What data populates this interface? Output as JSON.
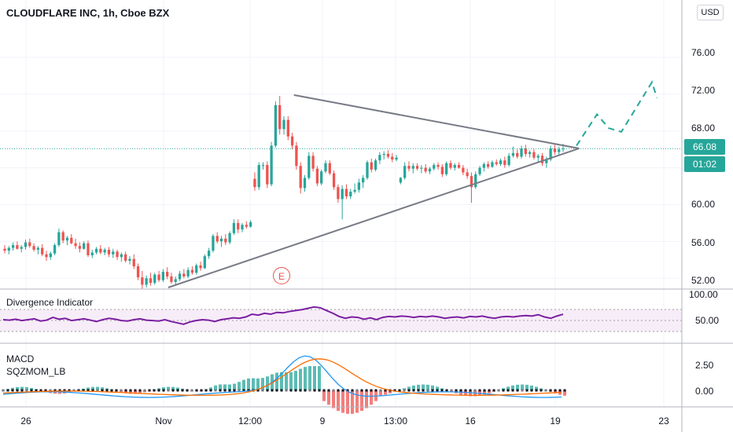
{
  "header": {
    "title": "CLOUDFLARE INC, 1h, Cboe BZX",
    "currency": "USD"
  },
  "price_axis": [
    "76.00",
    "72.00",
    "68.00",
    "64.00",
    "60.00",
    "56.00",
    "52.00"
  ],
  "last_price": {
    "value": "66.08",
    "countdown": "01:02"
  },
  "x_axis": [
    "26",
    "Nov",
    "12:00",
    "9",
    "13:00",
    "16",
    "19",
    "23"
  ],
  "earnings_marker": "E",
  "indicators": {
    "divergence": {
      "label": "Divergence Indicator",
      "ticks": [
        "100.00",
        "50.00"
      ]
    },
    "macd": {
      "label1": "MACD",
      "label2": "SQZMOM_LB",
      "ticks": [
        "2.50",
        "0.00"
      ]
    }
  },
  "colors": {
    "up": "#26a69a",
    "down": "#ef5350",
    "trend": "#787b86",
    "projection": "#26a69a",
    "divergence": "#7b1fa2",
    "macd": "#2196f3",
    "signal": "#ff6d00"
  },
  "chart_data": {
    "type": "candlestick",
    "title": "CLOUDFLARE INC, 1h, Cboe BZX",
    "ylim": [
      51,
      80
    ],
    "candles": [
      [
        55.2,
        55.6,
        54.7,
        55.0
      ],
      [
        55.0,
        55.5,
        54.6,
        55.3
      ],
      [
        55.3,
        55.9,
        55.0,
        55.6
      ],
      [
        55.6,
        56.0,
        55.1,
        55.2
      ],
      [
        55.2,
        55.6,
        54.8,
        55.4
      ],
      [
        55.4,
        56.2,
        55.1,
        55.9
      ],
      [
        55.9,
        56.3,
        55.3,
        55.5
      ],
      [
        55.5,
        55.8,
        54.9,
        55.1
      ],
      [
        55.1,
        55.5,
        54.6,
        55.3
      ],
      [
        55.3,
        55.7,
        54.4,
        54.6
      ],
      [
        54.6,
        55.0,
        53.9,
        54.3
      ],
      [
        54.3,
        54.9,
        54.0,
        54.7
      ],
      [
        54.7,
        55.8,
        54.5,
        55.6
      ],
      [
        55.6,
        57.4,
        55.4,
        57.0
      ],
      [
        57.0,
        57.2,
        55.8,
        56.1
      ],
      [
        56.1,
        56.6,
        55.6,
        56.4
      ],
      [
        56.4,
        56.8,
        55.7,
        55.8
      ],
      [
        55.8,
        56.3,
        55.2,
        55.5
      ],
      [
        55.5,
        55.9,
        54.8,
        55.2
      ],
      [
        55.2,
        56.0,
        55.1,
        55.8
      ],
      [
        55.8,
        56.1,
        54.3,
        54.5
      ],
      [
        54.5,
        55.1,
        54.2,
        54.8
      ],
      [
        54.8,
        55.4,
        54.6,
        55.2
      ],
      [
        55.2,
        55.6,
        54.6,
        54.8
      ],
      [
        54.8,
        55.3,
        54.5,
        55.1
      ],
      [
        55.1,
        55.4,
        54.3,
        54.6
      ],
      [
        54.6,
        55.2,
        54.2,
        54.9
      ],
      [
        54.9,
        55.1,
        54.0,
        54.3
      ],
      [
        54.3,
        54.8,
        53.8,
        54.6
      ],
      [
        54.6,
        54.9,
        53.7,
        53.9
      ],
      [
        53.9,
        54.4,
        53.5,
        54.1
      ],
      [
        54.1,
        54.6,
        53.0,
        53.3
      ],
      [
        53.3,
        53.6,
        51.8,
        52.1
      ],
      [
        52.1,
        52.8,
        50.8,
        51.3
      ],
      [
        51.3,
        52.3,
        51.0,
        52.0
      ],
      [
        52.0,
        52.6,
        51.2,
        51.5
      ],
      [
        51.5,
        52.6,
        51.3,
        52.4
      ],
      [
        52.4,
        52.8,
        51.6,
        51.8
      ],
      [
        51.8,
        53.0,
        51.6,
        52.7
      ],
      [
        52.7,
        53.2,
        51.9,
        52.2
      ],
      [
        52.2,
        52.6,
        51.4,
        51.6
      ],
      [
        51.6,
        52.2,
        51.2,
        51.9
      ],
      [
        51.9,
        52.8,
        51.7,
        52.5
      ],
      [
        52.5,
        53.0,
        52.0,
        52.2
      ],
      [
        52.2,
        53.2,
        52.0,
        52.9
      ],
      [
        52.9,
        53.3,
        52.4,
        52.6
      ],
      [
        52.6,
        53.6,
        52.4,
        53.4
      ],
      [
        53.4,
        53.8,
        52.8,
        53.1
      ],
      [
        53.1,
        54.6,
        53.0,
        54.4
      ],
      [
        54.4,
        55.3,
        54.1,
        55.0
      ],
      [
        55.0,
        56.8,
        54.8,
        56.6
      ],
      [
        56.6,
        57.0,
        55.8,
        56.0
      ],
      [
        56.0,
        56.6,
        55.4,
        56.3
      ],
      [
        56.3,
        56.8,
        55.6,
        55.9
      ],
      [
        55.9,
        57.1,
        55.7,
        56.9
      ],
      [
        56.9,
        58.4,
        56.7,
        58.0
      ],
      [
        58.0,
        58.4,
        56.9,
        57.3
      ],
      [
        57.3,
        58.0,
        57.0,
        57.8
      ],
      [
        57.8,
        58.2,
        57.4,
        57.6
      ],
      [
        57.6,
        58.3,
        57.5,
        58.1
      ],
      [
        62.8,
        63.5,
        61.5,
        61.9
      ],
      [
        61.9,
        64.6,
        61.6,
        64.3
      ],
      [
        64.3,
        64.6,
        63.8,
        64.3
      ],
      [
        64.3,
        64.7,
        61.8,
        62.2
      ],
      [
        62.2,
        66.8,
        62.0,
        66.4
      ],
      [
        66.4,
        71.2,
        66.2,
        70.8
      ],
      [
        70.8,
        71.8,
        67.6,
        68.2
      ],
      [
        68.2,
        69.6,
        67.6,
        69.2
      ],
      [
        69.2,
        69.6,
        67.0,
        67.4
      ],
      [
        67.4,
        67.8,
        66.0,
        66.4
      ],
      [
        66.4,
        66.8,
        63.8,
        64.2
      ],
      [
        64.2,
        64.6,
        61.2,
        61.8
      ],
      [
        61.8,
        63.2,
        61.4,
        62.9
      ],
      [
        62.9,
        65.7,
        62.7,
        65.3
      ],
      [
        65.3,
        65.7,
        63.6,
        63.9
      ],
      [
        63.9,
        64.2,
        62.0,
        62.3
      ],
      [
        62.3,
        63.8,
        62.1,
        63.6
      ],
      [
        63.6,
        64.8,
        63.4,
        64.5
      ],
      [
        64.5,
        64.8,
        63.2,
        63.4
      ],
      [
        63.4,
        63.7,
        61.6,
        61.9
      ],
      [
        61.9,
        62.2,
        60.2,
        60.6
      ],
      [
        60.6,
        62.1,
        58.4,
        61.7
      ],
      [
        61.7,
        62.2,
        60.6,
        60.9
      ],
      [
        60.9,
        61.7,
        60.6,
        61.4
      ],
      [
        61.4,
        62.3,
        61.2,
        61.6
      ],
      [
        61.6,
        62.8,
        61.3,
        62.4
      ],
      [
        62.4,
        63.2,
        61.8,
        62.9
      ],
      [
        62.9,
        64.8,
        62.7,
        64.6
      ],
      [
        64.6,
        65.0,
        63.5,
        63.8
      ],
      [
        63.8,
        65.0,
        63.6,
        64.8
      ],
      [
        64.8,
        65.7,
        64.4,
        65.4
      ],
      [
        65.4,
        65.8,
        64.9,
        65.5
      ],
      [
        65.5,
        65.9,
        65.0,
        65.2
      ],
      [
        65.2,
        65.6,
        64.6,
        64.9
      ],
      [
        64.9,
        65.4,
        64.7,
        65.1
      ],
      [
        62.4,
        63.0,
        62.2,
        62.9
      ],
      [
        62.9,
        64.6,
        62.7,
        64.2
      ],
      [
        64.2,
        64.7,
        63.6,
        63.9
      ],
      [
        63.9,
        64.5,
        63.4,
        64.2
      ],
      [
        64.2,
        64.5,
        63.7,
        63.9
      ],
      [
        63.9,
        64.3,
        63.4,
        64.0
      ],
      [
        64.0,
        64.4,
        63.4,
        63.6
      ],
      [
        63.6,
        64.1,
        63.3,
        63.9
      ],
      [
        63.9,
        64.5,
        63.7,
        64.3
      ],
      [
        64.3,
        64.6,
        63.8,
        64.1
      ],
      [
        64.1,
        64.4,
        63.0,
        63.3
      ],
      [
        63.3,
        64.7,
        63.1,
        64.5
      ],
      [
        64.5,
        64.8,
        63.8,
        64.0
      ],
      [
        64.0,
        64.5,
        63.7,
        64.3
      ],
      [
        64.3,
        64.6,
        63.9,
        64.0
      ],
      [
        64.0,
        64.3,
        63.2,
        63.5
      ],
      [
        63.5,
        63.9,
        62.8,
        63.1
      ],
      [
        63.1,
        63.5,
        60.2,
        61.9
      ],
      [
        61.9,
        63.6,
        61.7,
        63.3
      ],
      [
        63.3,
        64.2,
        63.1,
        64.0
      ],
      [
        64.0,
        64.6,
        63.6,
        64.4
      ],
      [
        64.4,
        64.7,
        63.9,
        64.1
      ],
      [
        64.1,
        64.8,
        64.0,
        64.6
      ],
      [
        64.6,
        64.9,
        64.2,
        64.4
      ],
      [
        64.4,
        65.0,
        64.2,
        64.8
      ],
      [
        64.8,
        65.2,
        64.0,
        64.3
      ],
      [
        64.3,
        65.6,
        64.1,
        65.3
      ],
      [
        65.3,
        66.3,
        65.1,
        65.6
      ],
      [
        65.6,
        66.0,
        65.0,
        65.2
      ],
      [
        65.2,
        66.4,
        65.0,
        66.1
      ],
      [
        66.1,
        66.5,
        65.2,
        65.5
      ],
      [
        65.5,
        65.9,
        65.1,
        65.7
      ],
      [
        65.7,
        66.0,
        64.9,
        65.1
      ],
      [
        65.1,
        65.5,
        64.6,
        65.3
      ],
      [
        65.3,
        65.6,
        64.2,
        64.5
      ],
      [
        64.5,
        65.2,
        64.0,
        64.9
      ],
      [
        64.9,
        66.4,
        64.7,
        66.1
      ],
      [
        66.1,
        66.5,
        65.4,
        65.7
      ],
      [
        65.7,
        66.3,
        65.4,
        66.0
      ],
      [
        66.0,
        66.6,
        65.7,
        66.08
      ]
    ],
    "trendlines": [
      {
        "name": "upper",
        "points": [
          [
            0.401,
            71.9
          ],
          [
            0.7902,
            66.1
          ]
        ]
      },
      {
        "name": "lower",
        "points": [
          [
            0.2295,
            51.0
          ],
          [
            0.7902,
            66.1
          ]
        ]
      }
    ],
    "projection": [
      [
        0.7865,
        66.4
      ],
      [
        0.8144,
        69.8
      ],
      [
        0.8305,
        68.3
      ],
      [
        0.8477,
        67.9
      ],
      [
        0.8895,
        73.3
      ],
      [
        0.8961,
        71.6
      ]
    ]
  }
}
